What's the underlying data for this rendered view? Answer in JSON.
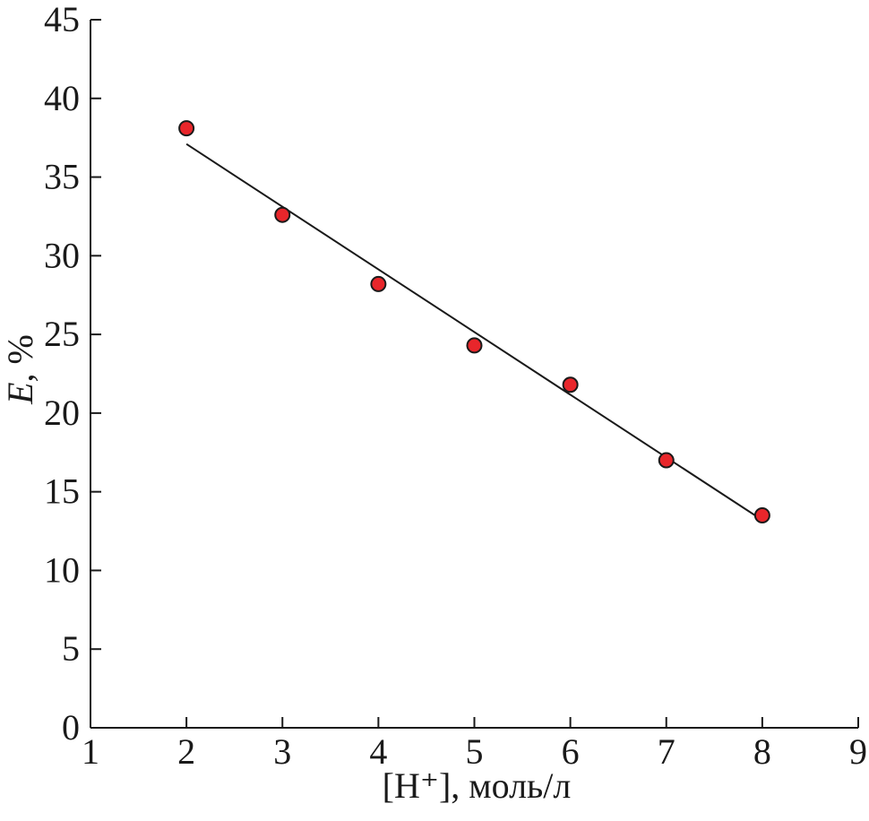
{
  "chart_data": {
    "type": "scatter",
    "xlabel": "[H⁺], моль/л",
    "ylabel_var": "E",
    "ylabel_unit": ", %",
    "xlim": [
      1,
      9
    ],
    "ylim": [
      0,
      45
    ],
    "xticks": [
      1,
      2,
      3,
      4,
      5,
      6,
      7,
      8,
      9
    ],
    "yticks": [
      0,
      5,
      10,
      15,
      20,
      25,
      30,
      35,
      40,
      45
    ],
    "grid": false,
    "series": [
      {
        "marker_color": "#e8262b",
        "points": [
          {
            "x": 2,
            "y": 38.1
          },
          {
            "x": 3,
            "y": 32.6
          },
          {
            "x": 4,
            "y": 28.2
          },
          {
            "x": 5,
            "y": 24.3
          },
          {
            "x": 6,
            "y": 21.8
          },
          {
            "x": 7,
            "y": 17.0
          },
          {
            "x": 8,
            "y": 13.5
          }
        ]
      }
    ],
    "fit_line": {
      "x": [
        2,
        8
      ],
      "y": [
        37.1,
        13.2
      ],
      "color": "#1a1a1a"
    }
  }
}
